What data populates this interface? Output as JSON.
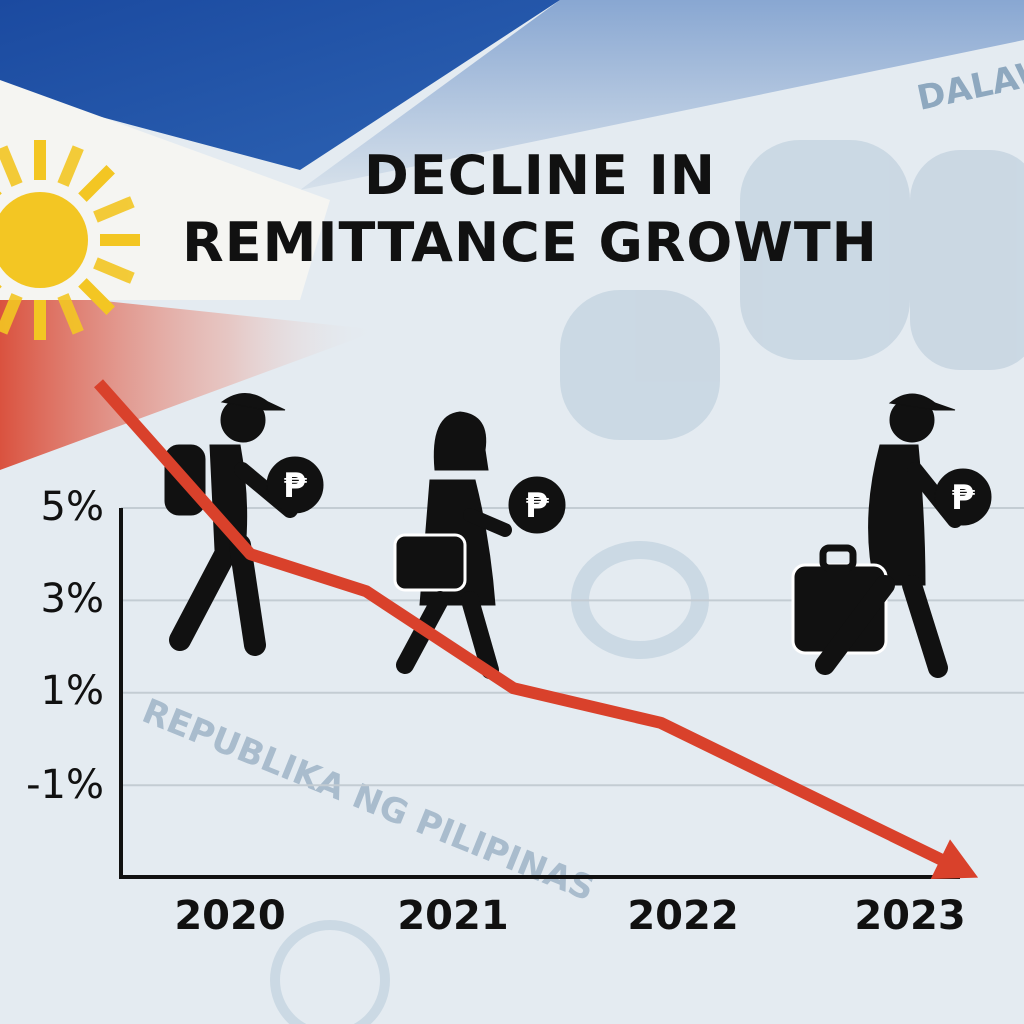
{
  "title": {
    "line1": "DECLINE IN",
    "line2": "REMITTANCE GROWTH"
  },
  "background": {
    "watermark_text": "REPUBLIKA NG PILIPINAS",
    "banknote_text": "DALAWA"
  },
  "colors": {
    "line": "#d9412b",
    "flag_blue": "#1d4ea1",
    "flag_red": "#d9412b",
    "sun": "#f3c623",
    "figures": "#111111"
  },
  "icons": [
    "person-with-cap-backpack-icon",
    "woman-with-bag-icon",
    "person-with-suitcase-icon",
    "peso-coin-icon",
    "philippine-sun-icon"
  ],
  "coin_symbol": "₱",
  "chart_data": {
    "type": "line",
    "title": "DECLINE IN REMITTANCE GROWTH",
    "xlabel": "",
    "ylabel": "",
    "x_tick_labels": [
      "2020",
      "2021",
      "2022",
      "2023"
    ],
    "y_tick_labels": [
      "5%",
      "3%",
      "1%",
      "-1%"
    ],
    "y_ticks": [
      5,
      3,
      1,
      -1
    ],
    "ylim": [
      -3.1,
      5
    ],
    "xlim": [
      2019.4,
      2023.35
    ],
    "grid": true,
    "legend": "none",
    "arrow_end": true,
    "series": [
      {
        "x": [
          2019.42,
          2020.09,
          2020.6,
          2021.25,
          2021.9,
          2023.3
        ],
        "y": [
          7.7,
          4.0,
          3.2,
          1.1,
          0.35,
          -3.0
        ]
      }
    ]
  }
}
